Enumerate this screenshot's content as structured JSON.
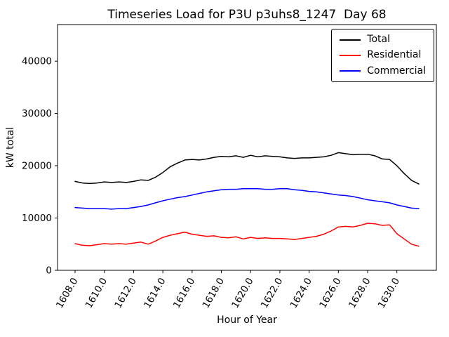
{
  "chart_data": {
    "type": "line",
    "title": "Timeseries Load for P3U p3uhs8_1247  Day 68",
    "xlabel": "Hour of Year",
    "ylabel": "kW total",
    "xlim": [
      1606.8,
      1632.7
    ],
    "ylim": [
      0,
      47000
    ],
    "grid": false,
    "legend_position": "upper right",
    "xticks": [
      1608.0,
      1610.0,
      1612.0,
      1614.0,
      1616.0,
      1618.0,
      1620.0,
      1622.0,
      1624.0,
      1626.0,
      1628.0,
      1630.0
    ],
    "xtick_labels": [
      "1608.0",
      "1610.0",
      "1612.0",
      "1614.0",
      "1616.0",
      "1618.0",
      "1620.0",
      "1622.0",
      "1624.0",
      "1626.0",
      "1628.0",
      "1630.0"
    ],
    "yticks": [
      0,
      10000,
      20000,
      30000,
      40000
    ],
    "ytick_labels": [
      "0",
      "10000",
      "20000",
      "30000",
      "40000"
    ],
    "x": [
      1608.0,
      1608.5,
      1609.0,
      1609.5,
      1610.0,
      1610.5,
      1611.0,
      1611.5,
      1612.0,
      1612.5,
      1613.0,
      1613.5,
      1614.0,
      1614.5,
      1615.0,
      1615.5,
      1616.0,
      1616.5,
      1617.0,
      1617.5,
      1618.0,
      1618.5,
      1619.0,
      1619.5,
      1620.0,
      1620.5,
      1621.0,
      1621.5,
      1622.0,
      1622.5,
      1623.0,
      1623.5,
      1624.0,
      1624.5,
      1625.0,
      1625.5,
      1626.0,
      1626.5,
      1627.0,
      1627.5,
      1628.0,
      1628.5,
      1629.0,
      1629.5,
      1630.0,
      1630.5,
      1631.0,
      1631.5
    ],
    "series": [
      {
        "name": "Total",
        "color": "#000000",
        "values": [
          17000,
          16700,
          16600,
          16700,
          16900,
          16800,
          16900,
          16800,
          17000,
          17300,
          17200,
          17800,
          18700,
          19800,
          20500,
          21100,
          21200,
          21100,
          21300,
          21600,
          21800,
          21700,
          21900,
          21600,
          22000,
          21700,
          21900,
          21800,
          21700,
          21500,
          21400,
          21500,
          21500,
          21600,
          21700,
          22000,
          22500,
          22300,
          22100,
          22200,
          22200,
          21900,
          21300,
          21200,
          20000,
          18500,
          17200,
          16500
        ]
      },
      {
        "name": "Residential",
        "color": "#ff0000",
        "values": [
          5100,
          4800,
          4700,
          4900,
          5100,
          5000,
          5100,
          5000,
          5200,
          5400,
          5000,
          5600,
          6300,
          6700,
          7000,
          7300,
          6900,
          6700,
          6500,
          6600,
          6300,
          6200,
          6400,
          6000,
          6300,
          6100,
          6200,
          6100,
          6100,
          6000,
          5900,
          6100,
          6300,
          6500,
          6900,
          7500,
          8300,
          8400,
          8300,
          8600,
          9000,
          8900,
          8600,
          8700,
          7000,
          6000,
          5000,
          4600
        ]
      },
      {
        "name": "Commercial",
        "color": "#0000ff",
        "values": [
          12000,
          11900,
          11800,
          11800,
          11800,
          11700,
          11800,
          11800,
          12000,
          12200,
          12500,
          12900,
          13300,
          13600,
          13900,
          14100,
          14400,
          14700,
          15000,
          15200,
          15400,
          15500,
          15500,
          15600,
          15600,
          15600,
          15500,
          15500,
          15600,
          15600,
          15400,
          15300,
          15100,
          15000,
          14800,
          14600,
          14400,
          14300,
          14100,
          13800,
          13500,
          13300,
          13100,
          12900,
          12500,
          12200,
          11900,
          11800
        ]
      }
    ]
  }
}
